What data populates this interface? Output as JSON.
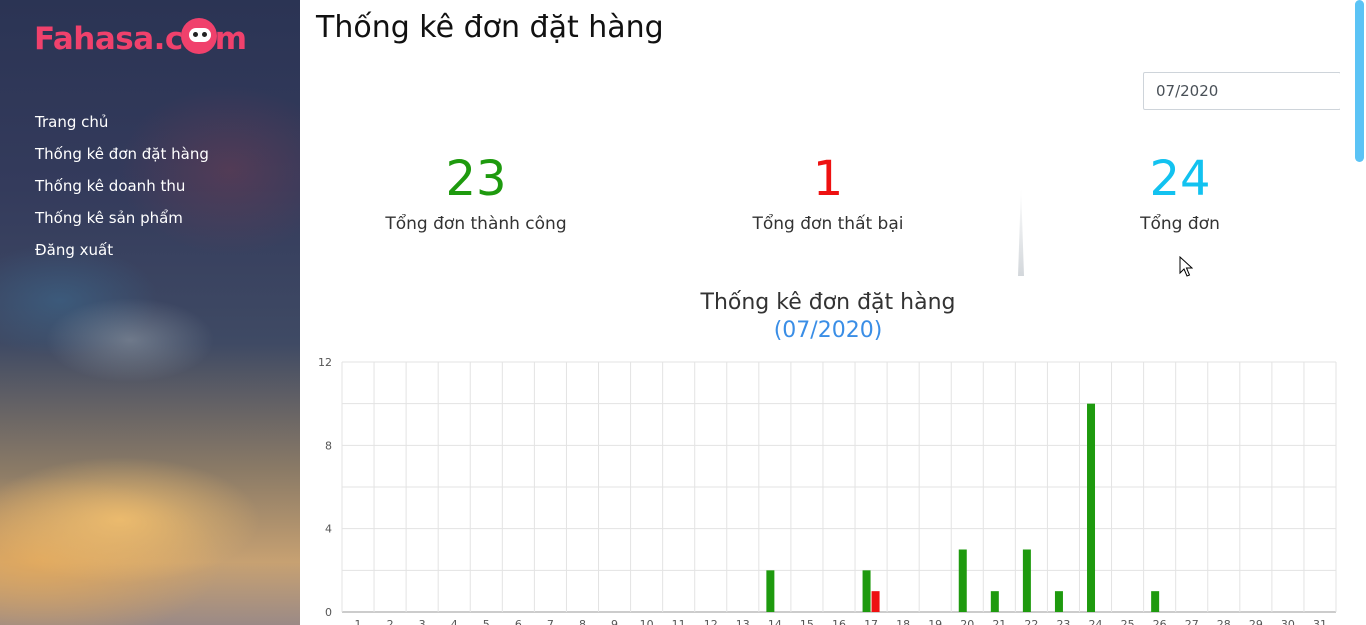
{
  "brand": {
    "logo_text_left": "Fahasa.c",
    "logo_text_right": "m",
    "color": "#f0416c"
  },
  "sidebar": {
    "items": [
      {
        "label": "Trang chủ"
      },
      {
        "label": "Thống kê đơn đặt hàng"
      },
      {
        "label": "Thống kê doanh thu"
      },
      {
        "label": "Thống kê sản phẩm"
      },
      {
        "label": "Đăng xuất"
      }
    ]
  },
  "page": {
    "title": "Thống kê đơn đặt hàng"
  },
  "filter": {
    "month_value": "07/2020",
    "icon": "calendar-icon"
  },
  "stats": {
    "success": {
      "value": "23",
      "label": "Tổng đơn thành công",
      "color": "#1e9a0e"
    },
    "failed": {
      "value": "1",
      "label": "Tổng đơn thất bại",
      "color": "#ee1111"
    },
    "total": {
      "value": "24",
      "label": "Tổng đơn",
      "color": "#12c2f0"
    }
  },
  "chart_data": {
    "type": "bar",
    "title": "Thống kê đơn đặt hàng",
    "subtitle": "(07/2020)",
    "categories": [
      "1",
      "2",
      "3",
      "4",
      "5",
      "6",
      "7",
      "8",
      "9",
      "10",
      "11",
      "12",
      "13",
      "14",
      "15",
      "16",
      "17",
      "18",
      "19",
      "20",
      "21",
      "22",
      "23",
      "24",
      "25",
      "26",
      "27",
      "28",
      "29",
      "30",
      "31"
    ],
    "series": [
      {
        "color": "#1e9a0e",
        "values": [
          0,
          0,
          0,
          0,
          0,
          0,
          0,
          0,
          0,
          0,
          0,
          0,
          0,
          2,
          0,
          0,
          2,
          0,
          0,
          3,
          1,
          3,
          1,
          10,
          0,
          1,
          0,
          0,
          0,
          0,
          0
        ]
      },
      {
        "color": "#ee1111",
        "values": [
          0,
          0,
          0,
          0,
          0,
          0,
          0,
          0,
          0,
          0,
          0,
          0,
          0,
          0,
          0,
          0,
          1,
          0,
          0,
          0,
          0,
          0,
          0,
          0,
          0,
          0,
          0,
          0,
          0,
          0,
          0
        ]
      }
    ],
    "ylim": [
      0,
      12
    ],
    "yticks": [
      0,
      4,
      8,
      12
    ],
    "grid": true
  }
}
